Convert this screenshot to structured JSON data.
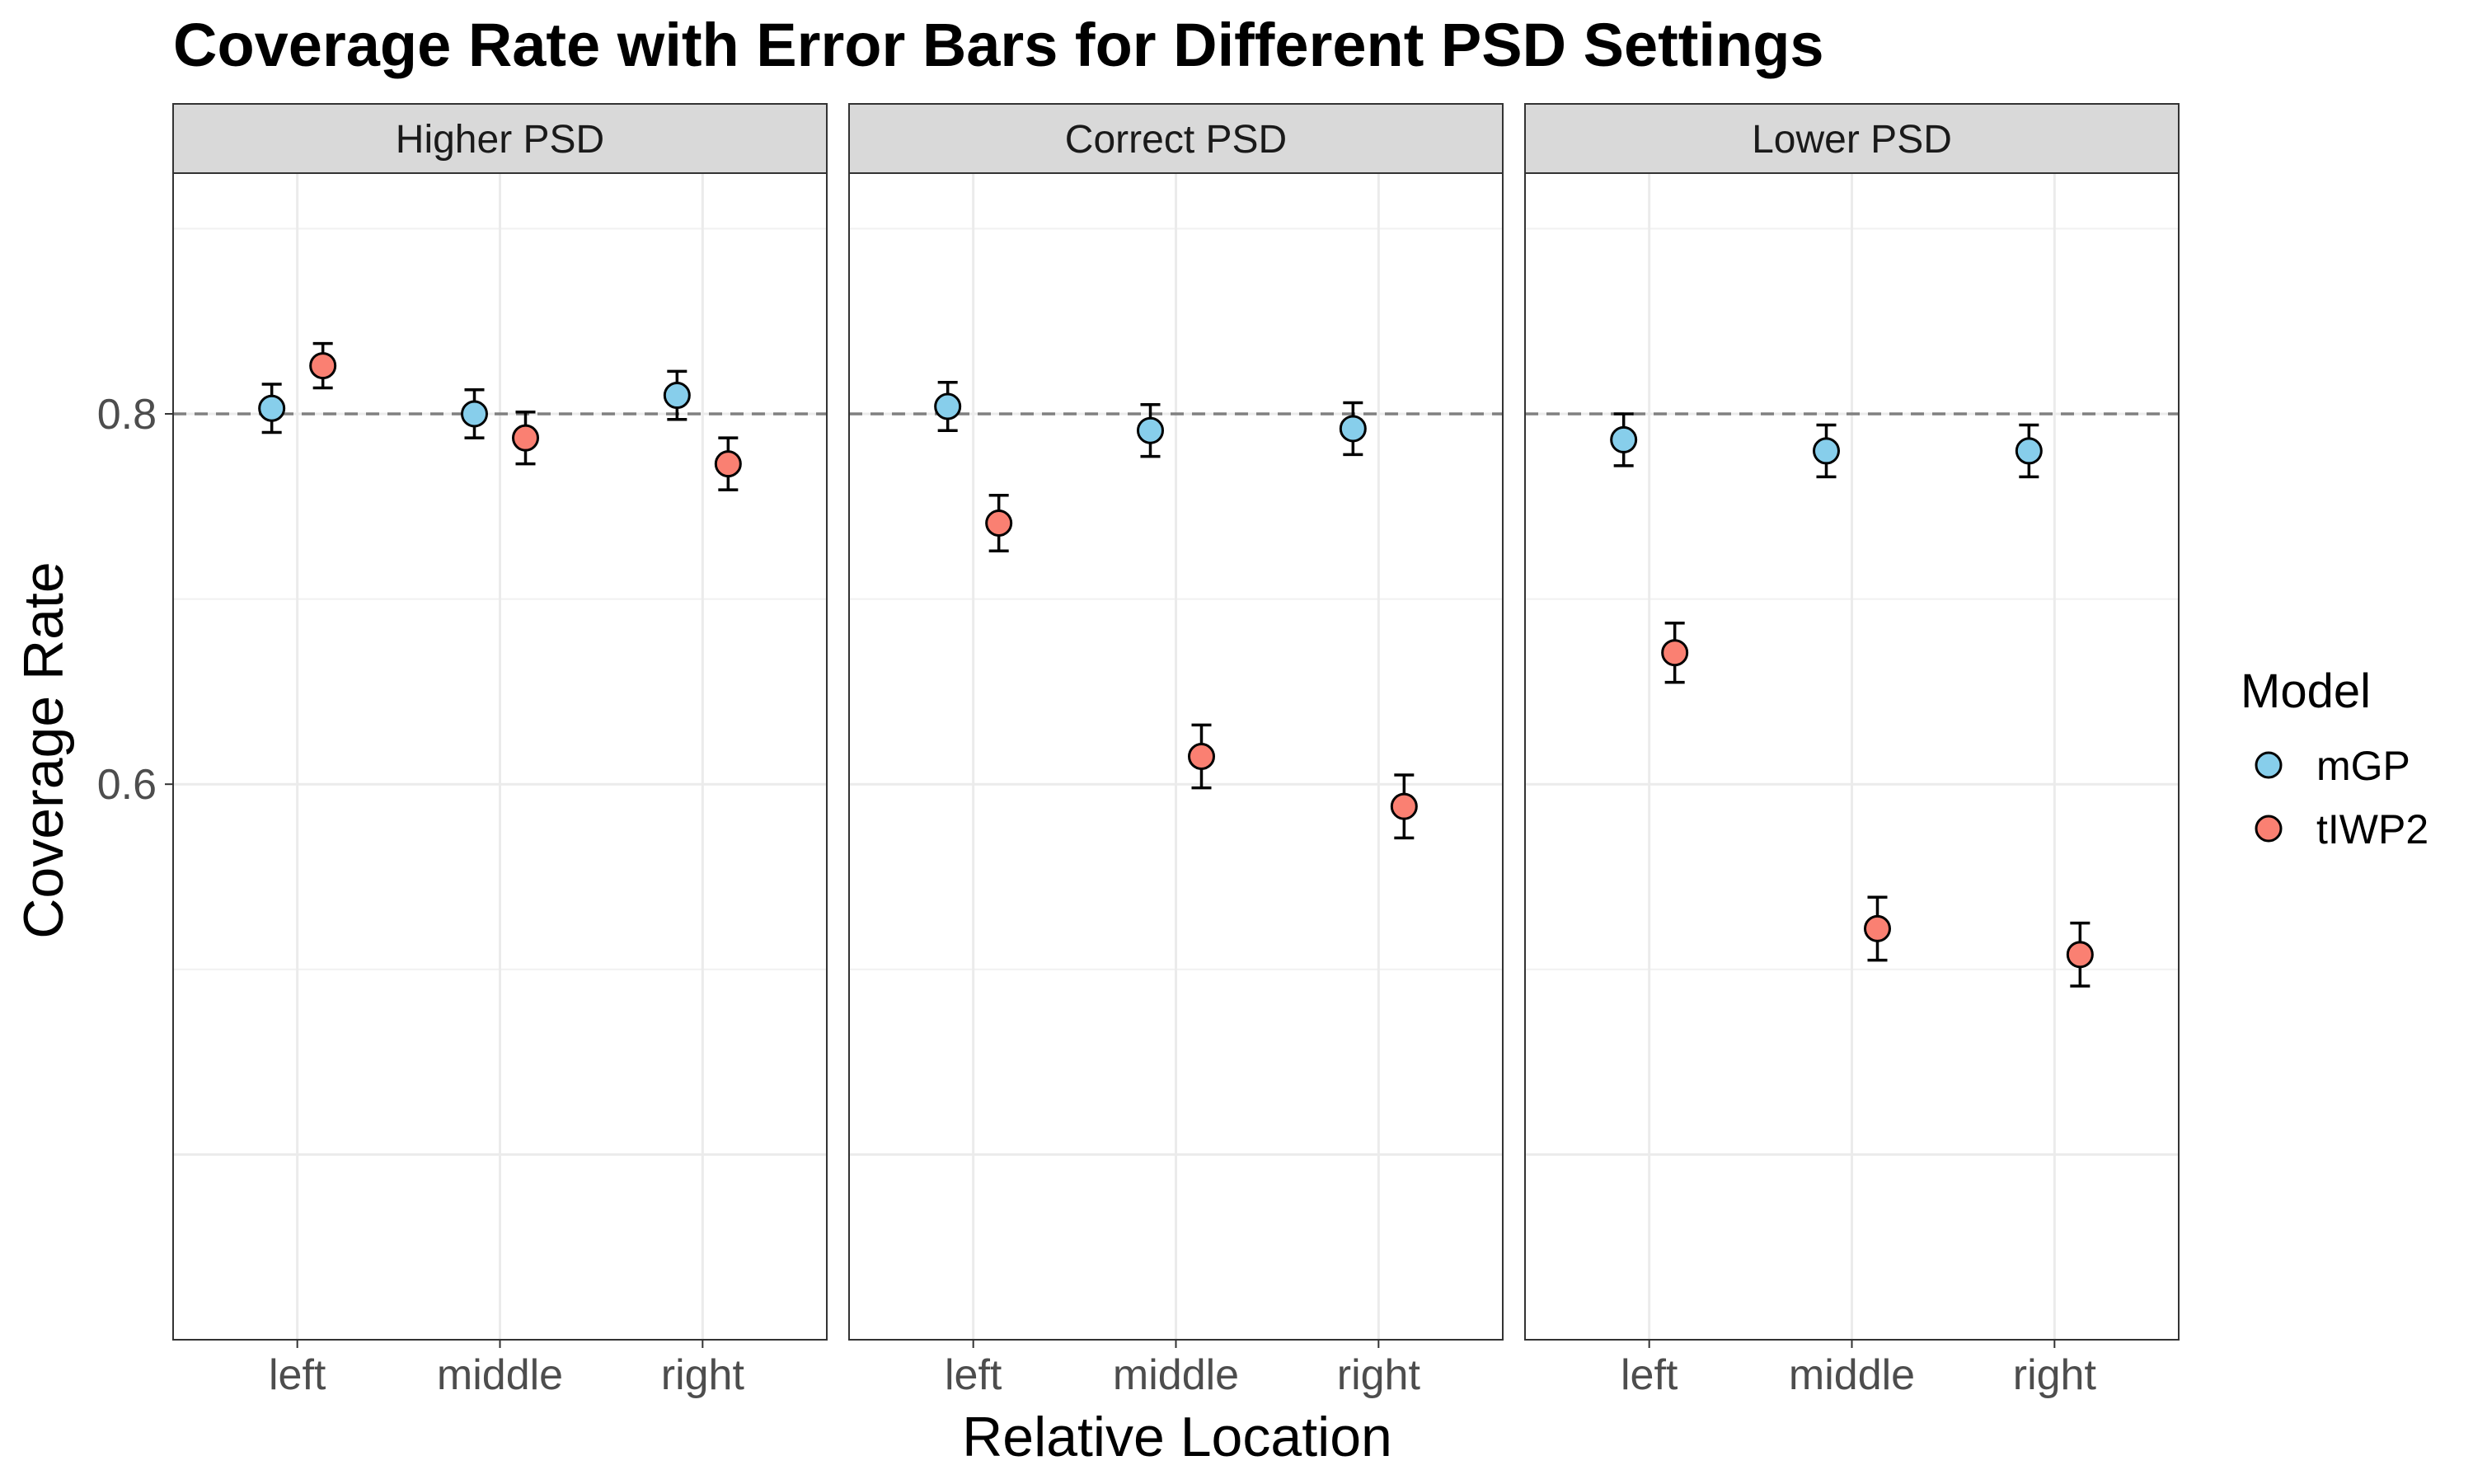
{
  "chart_data": {
    "type": "scatter",
    "title": "Coverage Rate with Error Bars for Different PSD Settings",
    "xlabel": "Relative Location",
    "ylabel": "Coverage Rate",
    "ylim": [
      0.3,
      0.93
    ],
    "yticks": [
      0.6,
      0.8
    ],
    "ytick_labels": [
      "0.6",
      "0.8"
    ],
    "reference_line": 0.8,
    "categories": [
      "left",
      "middle",
      "right"
    ],
    "facets": [
      "Higher PSD",
      "Correct PSD",
      "Lower PSD"
    ],
    "legend_title": "Model",
    "legend_position": "right",
    "grid": true,
    "series": [
      {
        "name": "mGP",
        "color": "#87CEEB",
        "values": [
          [
            0.803,
            0.8,
            0.81
          ],
          [
            0.804,
            0.791,
            0.792
          ],
          [
            0.786,
            0.78,
            0.78
          ]
        ],
        "errors": [
          [
            0.013,
            0.013,
            0.013
          ],
          [
            0.013,
            0.014,
            0.014
          ],
          [
            0.014,
            0.014,
            0.014
          ]
        ]
      },
      {
        "name": "tIWP2",
        "color": "#FA8072",
        "values": [
          [
            0.826,
            0.787,
            0.773
          ],
          [
            0.741,
            0.615,
            0.588
          ],
          [
            0.671,
            0.522,
            0.508
          ]
        ],
        "errors": [
          [
            0.012,
            0.014,
            0.014
          ],
          [
            0.015,
            0.017,
            0.017
          ],
          [
            0.016,
            0.017,
            0.017
          ]
        ]
      }
    ]
  }
}
